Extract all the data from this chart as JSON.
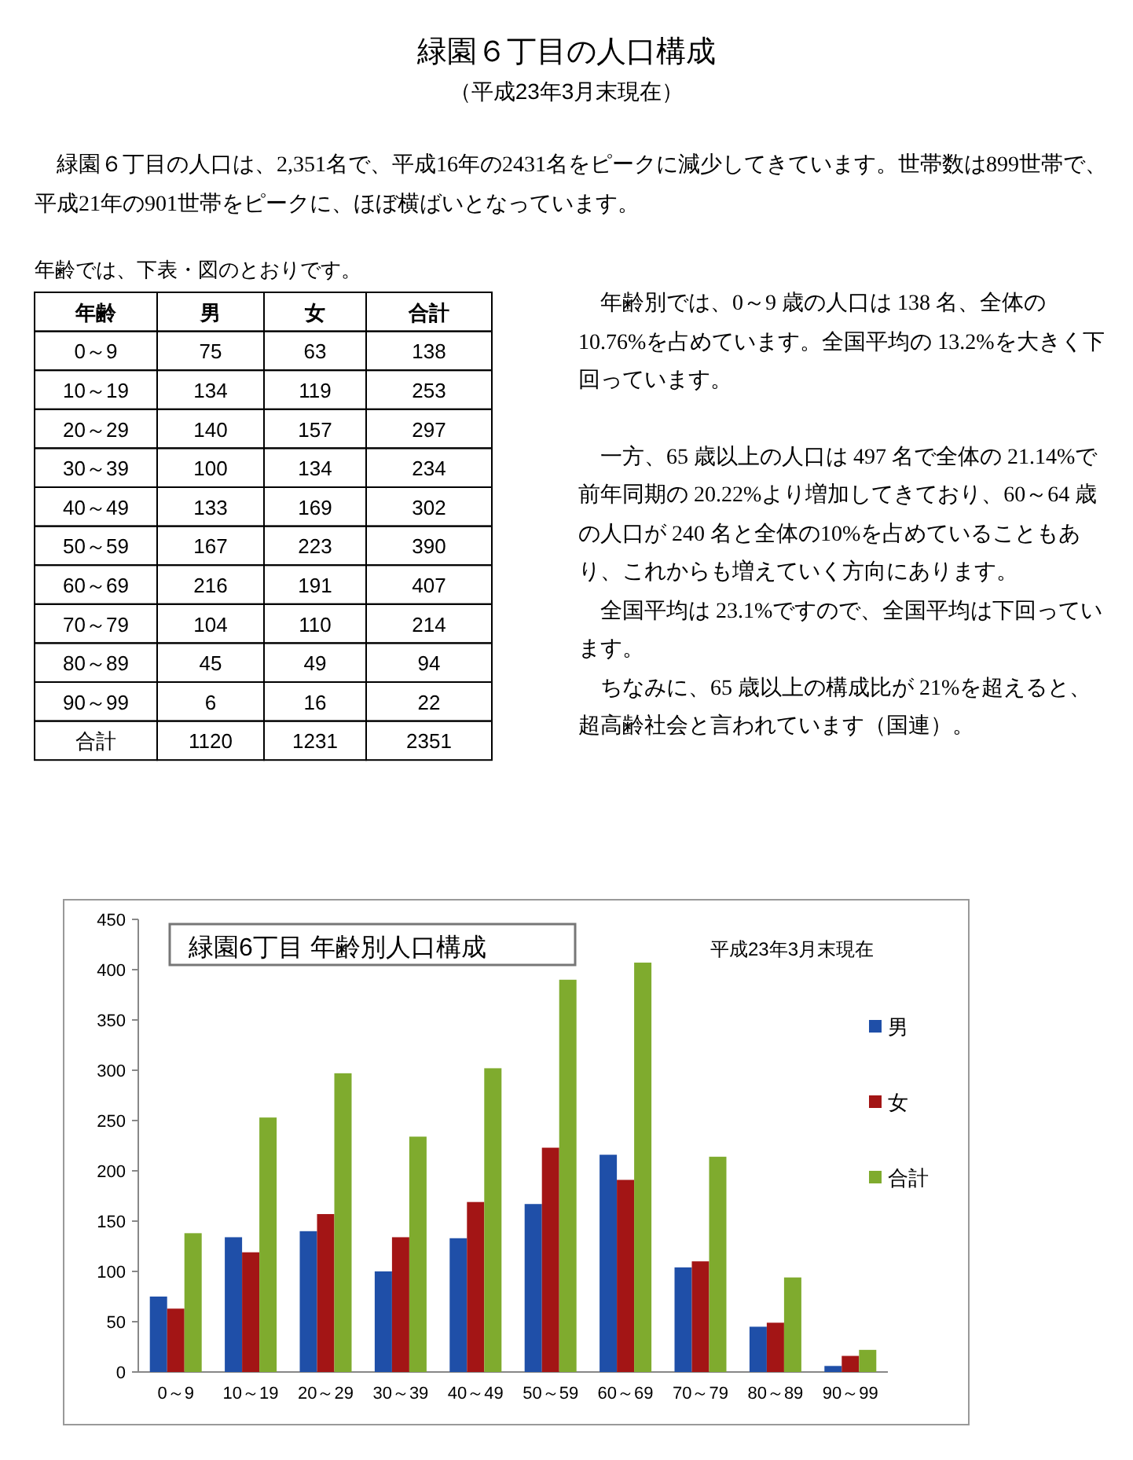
{
  "chart_data": [
    {
      "type": "heatmap",
      "ylabel": "年齢",
      "data_labels": true,
      "categories": [
        "男",
        "女",
        "合計"
      ],
      "y_categories": [
        "0～9",
        "10～19",
        "20～29",
        "30～39",
        "40～49",
        "50～59",
        "60～69",
        "70～79",
        "80～89",
        "90～99",
        "合計"
      ],
      "cells": [
        [
          75,
          63,
          138
        ],
        [
          134,
          119,
          253
        ],
        [
          140,
          157,
          297
        ],
        [
          100,
          134,
          234
        ],
        [
          133,
          169,
          302
        ],
        [
          167,
          223,
          390
        ],
        [
          216,
          191,
          407
        ],
        [
          104,
          110,
          214
        ],
        [
          45,
          49,
          94
        ],
        [
          6,
          16,
          22
        ],
        [
          1120,
          1231,
          2351
        ]
      ],
      "annotations": [
        "緑園６丁目の人口構成",
        "（平成23年3月末現在）",
        "緑園６丁目の人口は、2,351名で、平成16年の2431名をピークに減少してきています。世帯数は899世帯で、平成21年の901世帯をピークに、ほぼ横ばいとなっています。",
        "年齢では、下表・図のとおりです。",
        "年齢別では、0～9 歳の人口は 138 名、全体の 10.76%を占めています。全国平均の 13.2%を大きく下回っています。",
        "一方、65 歳以上の人口は 497 名で全体の 21.14%で前年同期の 20.22%より増加してきており、60～64 歳の人口が 240 名と全体の10%を占めていることもあり、これからも増えていく方向にあります。",
        "全国平均は 23.1%ですので、全国平均は下回っています。",
        "ちなみに、65 歳以上の構成比が 21%を超えると、超高齢社会と言われています（国連）。"
      ]
    },
    {
      "type": "bar",
      "title": "緑園6丁目 年齢別人口構成",
      "subtitle": "平成23年3月末現在",
      "categories": [
        "0～9",
        "10～19",
        "20～29",
        "30～39",
        "40～49",
        "50～59",
        "60～69",
        "70～79",
        "80～89",
        "90～99"
      ],
      "series": [
        {
          "name": "男",
          "color": "#1f4fa8",
          "values": [
            75,
            134,
            140,
            100,
            133,
            167,
            216,
            104,
            45,
            6
          ]
        },
        {
          "name": "女",
          "color": "#a31515",
          "values": [
            63,
            119,
            157,
            134,
            169,
            223,
            191,
            110,
            49,
            16
          ]
        },
        {
          "name": "合計",
          "color": "#7fab2e",
          "values": [
            138,
            253,
            297,
            234,
            302,
            390,
            407,
            214,
            94,
            22
          ]
        }
      ],
      "ylim": [
        0,
        450
      ],
      "yticks": [
        0,
        50,
        100,
        150,
        200,
        250,
        300,
        350,
        400,
        450
      ],
      "legend": "right"
    }
  ]
}
